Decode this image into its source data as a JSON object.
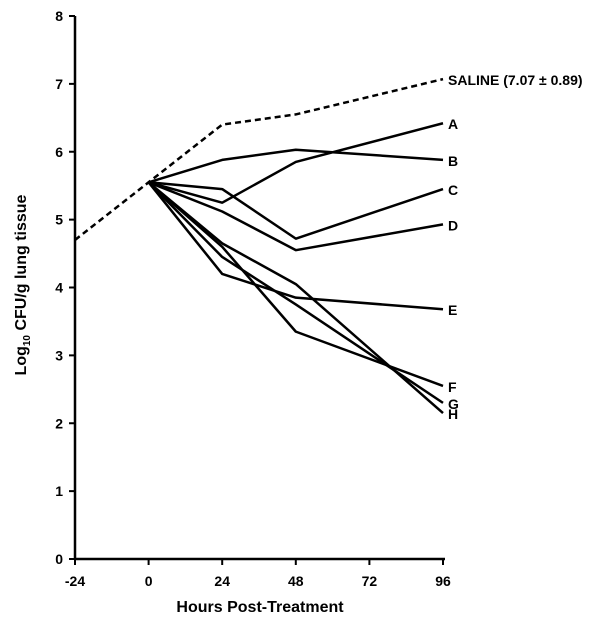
{
  "chart_data": {
    "type": "line",
    "xlabel": "Hours Post-Treatment",
    "ylabel_parts": {
      "before": "Log",
      "sub": "10",
      "after": " CFU/g lung tissue"
    },
    "x_ticks": [
      -24,
      0,
      24,
      48,
      72,
      96
    ],
    "y_ticks": [
      0,
      1,
      2,
      3,
      4,
      5,
      6,
      7,
      8
    ],
    "xlim": [
      -24,
      96
    ],
    "ylim": [
      0,
      8
    ],
    "grid": false,
    "series": [
      {
        "name": "SALINE (7.07 ± 0.89)",
        "style": "dashed",
        "x": [
          -24,
          0,
          24,
          48,
          96
        ],
        "y": [
          4.7,
          5.55,
          6.4,
          6.55,
          7.07
        ]
      },
      {
        "name": "A",
        "style": "solid",
        "x": [
          0,
          24,
          48,
          96
        ],
        "y": [
          5.55,
          5.25,
          5.85,
          6.42
        ]
      },
      {
        "name": "B",
        "style": "solid",
        "x": [
          0,
          24,
          48,
          96
        ],
        "y": [
          5.55,
          5.88,
          6.03,
          5.88
        ]
      },
      {
        "name": "C",
        "style": "solid",
        "x": [
          0,
          24,
          48,
          96
        ],
        "y": [
          5.55,
          5.45,
          4.72,
          5.45
        ]
      },
      {
        "name": "D",
        "style": "solid",
        "x": [
          0,
          24,
          48,
          96
        ],
        "y": [
          5.55,
          5.12,
          4.55,
          4.93
        ]
      },
      {
        "name": "E",
        "style": "solid",
        "x": [
          0,
          24,
          48,
          96
        ],
        "y": [
          5.55,
          4.2,
          3.85,
          3.68
        ]
      },
      {
        "name": "F",
        "style": "solid",
        "x": [
          0,
          24,
          48,
          96
        ],
        "y": [
          5.55,
          4.6,
          3.35,
          2.55
        ]
      },
      {
        "name": "G",
        "style": "solid",
        "x": [
          0,
          24,
          48,
          96
        ],
        "y": [
          5.55,
          4.45,
          3.75,
          2.3
        ]
      },
      {
        "name": "H",
        "style": "solid",
        "x": [
          0,
          24,
          48,
          96
        ],
        "y": [
          5.55,
          4.65,
          4.05,
          2.15
        ]
      }
    ]
  }
}
